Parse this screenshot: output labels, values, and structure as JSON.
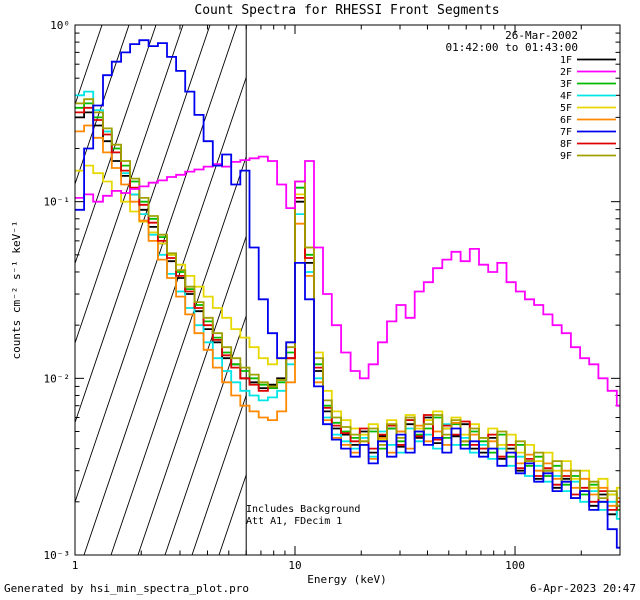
{
  "header": {
    "title": "Count Spectra for RHESSI Front Segments"
  },
  "annotations": {
    "date": "26-Mar-2002",
    "time_range": "01:42:00 to 01:43:00",
    "includes_background": "Includes Background",
    "att_line": "Att A1, FDecim 1"
  },
  "footer": {
    "generated_by": "Generated by hsi_min_spectra_plot.pro",
    "printed": "6-Apr-2023 20:47"
  },
  "colors": {
    "time_text": "#2222cc",
    "axis": "#000000",
    "background": "#ffffff"
  },
  "chart_data": {
    "type": "line",
    "title": "Count Spectra for RHESSI Front Segments",
    "xlabel": "Energy (keV)",
    "ylabel": "counts cm⁻² s⁻¹ keV⁻¹",
    "xscale": "log",
    "yscale": "log",
    "xlim": [
      1,
      300
    ],
    "ylim": [
      0.001,
      1
    ],
    "grid": false,
    "legend_position": "top-right",
    "x_tick_labels": [
      "1",
      "10",
      "100"
    ],
    "x_tick_values": [
      1,
      10,
      100
    ],
    "y_tick_labels": [
      "10⁰",
      "10⁻¹",
      "10⁻²",
      "10⁻³"
    ],
    "y_tick_values": [
      1,
      0.1,
      0.01,
      0.001
    ],
    "hatch_region": {
      "x_start": 1,
      "x_end": 6,
      "style": "diagonal-lines"
    },
    "draw_order": [
      0,
      2,
      3,
      4,
      5,
      7,
      8,
      1,
      6
    ],
    "x": [
      1.0,
      1.1,
      1.21,
      1.34,
      1.47,
      1.62,
      1.78,
      1.96,
      2.16,
      2.38,
      2.62,
      2.88,
      3.17,
      3.49,
      3.84,
      4.23,
      4.66,
      5.13,
      5.64,
      6.21,
      6.84,
      7.53,
      8.29,
      9.12,
      10.0,
      11.1,
      12.2,
      13.4,
      14.7,
      16.2,
      17.9,
      19.7,
      21.6,
      23.8,
      26.2,
      28.9,
      31.8,
      35.0,
      38.5,
      42.4,
      46.7,
      51.4,
      56.6,
      62.3,
      68.6,
      75.5,
      83.1,
      91.5,
      100.8,
      110.9,
      122.1,
      134.4,
      148.0,
      162.9,
      179.4,
      197.5,
      217.4,
      239.3,
      263.5,
      290.0
    ],
    "series": [
      {
        "name": "1F",
        "color": "#000000",
        "values": [
          0.3,
          0.32,
          0.27,
          0.22,
          0.17,
          0.14,
          0.11,
          0.09,
          0.072,
          0.058,
          0.046,
          0.037,
          0.03,
          0.024,
          0.019,
          0.016,
          0.013,
          0.012,
          0.01,
          0.0095,
          0.0088,
          0.0092,
          0.01,
          0.013,
          0.1,
          0.045,
          0.011,
          0.0065,
          0.0052,
          0.0048,
          0.0042,
          0.005,
          0.0038,
          0.0047,
          0.0052,
          0.0041,
          0.0055,
          0.0046,
          0.006,
          0.0043,
          0.0052,
          0.0047,
          0.0055,
          0.004,
          0.0038,
          0.0046,
          0.0035,
          0.004,
          0.003,
          0.0034,
          0.0027,
          0.003,
          0.0024,
          0.0027,
          0.0021,
          0.0023,
          0.0019,
          0.0022,
          0.0017,
          0.0019
        ]
      },
      {
        "name": "2F",
        "color": "#ff00ff",
        "values": [
          0.105,
          0.11,
          0.1,
          0.108,
          0.115,
          0.112,
          0.118,
          0.122,
          0.128,
          0.132,
          0.138,
          0.142,
          0.148,
          0.152,
          0.158,
          0.163,
          0.158,
          0.168,
          0.172,
          0.176,
          0.18,
          0.17,
          0.125,
          0.092,
          0.13,
          0.17,
          0.055,
          0.03,
          0.02,
          0.014,
          0.011,
          0.01,
          0.012,
          0.016,
          0.021,
          0.026,
          0.022,
          0.031,
          0.035,
          0.042,
          0.047,
          0.052,
          0.046,
          0.054,
          0.044,
          0.04,
          0.045,
          0.035,
          0.031,
          0.028,
          0.026,
          0.023,
          0.02,
          0.018,
          0.015,
          0.013,
          0.012,
          0.01,
          0.0085,
          0.007
        ]
      },
      {
        "name": "3F",
        "color": "#00bb00",
        "values": [
          0.34,
          0.36,
          0.3,
          0.25,
          0.2,
          0.16,
          0.13,
          0.1,
          0.08,
          0.063,
          0.05,
          0.04,
          0.032,
          0.026,
          0.021,
          0.017,
          0.014,
          0.012,
          0.011,
          0.01,
          0.0092,
          0.0088,
          0.0095,
          0.014,
          0.12,
          0.05,
          0.012,
          0.007,
          0.0056,
          0.005,
          0.0046,
          0.0042,
          0.005,
          0.004,
          0.0052,
          0.0044,
          0.0058,
          0.0048,
          0.0052,
          0.006,
          0.0046,
          0.0055,
          0.0042,
          0.005,
          0.0044,
          0.0038,
          0.0048,
          0.0036,
          0.0042,
          0.0032,
          0.0036,
          0.0028,
          0.0032,
          0.0025,
          0.0028,
          0.0022,
          0.0025,
          0.002,
          0.0022,
          0.0018
        ]
      },
      {
        "name": "4F",
        "color": "#00e5e5",
        "values": [
          0.4,
          0.42,
          0.33,
          0.25,
          0.19,
          0.145,
          0.11,
          0.085,
          0.065,
          0.05,
          0.039,
          0.031,
          0.025,
          0.02,
          0.016,
          0.013,
          0.011,
          0.0095,
          0.0085,
          0.008,
          0.0075,
          0.0078,
          0.0085,
          0.012,
          0.085,
          0.04,
          0.01,
          0.006,
          0.0048,
          0.0044,
          0.004,
          0.0046,
          0.0036,
          0.005,
          0.0042,
          0.0038,
          0.0052,
          0.0044,
          0.0048,
          0.004,
          0.0055,
          0.0042,
          0.0046,
          0.0038,
          0.0042,
          0.0035,
          0.004,
          0.0032,
          0.0036,
          0.0028,
          0.0032,
          0.0026,
          0.0028,
          0.0023,
          0.0026,
          0.002,
          0.0023,
          0.0018,
          0.002,
          0.0016
        ]
      },
      {
        "name": "5F",
        "color": "#e6d800",
        "values": [
          0.15,
          0.16,
          0.145,
          0.13,
          0.115,
          0.1,
          0.088,
          0.077,
          0.067,
          0.058,
          0.05,
          0.044,
          0.038,
          0.033,
          0.029,
          0.025,
          0.022,
          0.019,
          0.017,
          0.015,
          0.013,
          0.012,
          0.013,
          0.016,
          0.11,
          0.055,
          0.014,
          0.0085,
          0.0065,
          0.0058,
          0.0052,
          0.0048,
          0.0055,
          0.0045,
          0.0058,
          0.005,
          0.0062,
          0.0052,
          0.0058,
          0.0065,
          0.0052,
          0.006,
          0.0048,
          0.0055,
          0.0046,
          0.0052,
          0.0042,
          0.0048,
          0.0038,
          0.0042,
          0.0034,
          0.0038,
          0.003,
          0.0034,
          0.0027,
          0.003,
          0.0024,
          0.0027,
          0.0022,
          0.0024
        ]
      },
      {
        "name": "6F",
        "color": "#ff8800",
        "values": [
          0.25,
          0.27,
          0.23,
          0.19,
          0.155,
          0.125,
          0.1,
          0.078,
          0.06,
          0.047,
          0.037,
          0.029,
          0.023,
          0.018,
          0.0145,
          0.0115,
          0.0095,
          0.008,
          0.007,
          0.0065,
          0.006,
          0.0058,
          0.0065,
          0.0095,
          0.075,
          0.038,
          0.0095,
          0.0058,
          0.0046,
          0.0042,
          0.0038,
          0.0044,
          0.0035,
          0.0046,
          0.0038,
          0.005,
          0.004,
          0.0054,
          0.0044,
          0.005,
          0.0042,
          0.0056,
          0.0044,
          0.0048,
          0.004,
          0.0044,
          0.0036,
          0.0042,
          0.0033,
          0.0037,
          0.003,
          0.0033,
          0.0027,
          0.003,
          0.0024,
          0.0027,
          0.0022,
          0.0024,
          0.0019,
          0.0021
        ]
      },
      {
        "name": "7F",
        "color": "#0000ee",
        "values": [
          0.09,
          0.2,
          0.35,
          0.52,
          0.62,
          0.7,
          0.78,
          0.82,
          0.76,
          0.79,
          0.66,
          0.55,
          0.42,
          0.31,
          0.22,
          0.16,
          0.185,
          0.125,
          0.15,
          0.055,
          0.028,
          0.018,
          0.013,
          0.016,
          0.045,
          0.028,
          0.009,
          0.0055,
          0.0045,
          0.004,
          0.0036,
          0.0042,
          0.0033,
          0.0044,
          0.0036,
          0.0048,
          0.0038,
          0.005,
          0.0042,
          0.0046,
          0.0038,
          0.0052,
          0.004,
          0.0044,
          0.0036,
          0.004,
          0.0032,
          0.0038,
          0.0029,
          0.0033,
          0.0026,
          0.0029,
          0.0023,
          0.0026,
          0.0021,
          0.0023,
          0.0018,
          0.002,
          0.0014,
          0.0011
        ]
      },
      {
        "name": "8F",
        "color": "#dd0000",
        "values": [
          0.32,
          0.34,
          0.29,
          0.24,
          0.19,
          0.15,
          0.12,
          0.096,
          0.076,
          0.06,
          0.048,
          0.038,
          0.031,
          0.025,
          0.02,
          0.0165,
          0.0135,
          0.0115,
          0.01,
          0.0092,
          0.0085,
          0.009,
          0.0098,
          0.013,
          0.105,
          0.048,
          0.0115,
          0.0068,
          0.0054,
          0.0049,
          0.0044,
          0.0052,
          0.004,
          0.0048,
          0.0054,
          0.0042,
          0.0058,
          0.0047,
          0.0062,
          0.0045,
          0.0054,
          0.0048,
          0.0057,
          0.0042,
          0.004,
          0.0048,
          0.0036,
          0.0042,
          0.0031,
          0.0035,
          0.0028,
          0.0031,
          0.0025,
          0.0028,
          0.0022,
          0.0024,
          0.002,
          0.0023,
          0.0018,
          0.002
        ]
      },
      {
        "name": "9F",
        "color": "#a0a000",
        "values": [
          0.36,
          0.38,
          0.32,
          0.26,
          0.21,
          0.17,
          0.135,
          0.105,
          0.083,
          0.065,
          0.051,
          0.041,
          0.033,
          0.027,
          0.022,
          0.018,
          0.015,
          0.013,
          0.0115,
          0.0105,
          0.0095,
          0.009,
          0.0098,
          0.015,
          0.13,
          0.055,
          0.013,
          0.0075,
          0.006,
          0.0053,
          0.0048,
          0.0044,
          0.0052,
          0.0042,
          0.0055,
          0.0046,
          0.006,
          0.005,
          0.0055,
          0.0062,
          0.0048,
          0.0058,
          0.0044,
          0.0052,
          0.0046,
          0.004,
          0.005,
          0.0038,
          0.0044,
          0.0034,
          0.0038,
          0.003,
          0.0034,
          0.0026,
          0.003,
          0.0023,
          0.0026,
          0.0021,
          0.0023,
          0.0019
        ]
      }
    ]
  }
}
